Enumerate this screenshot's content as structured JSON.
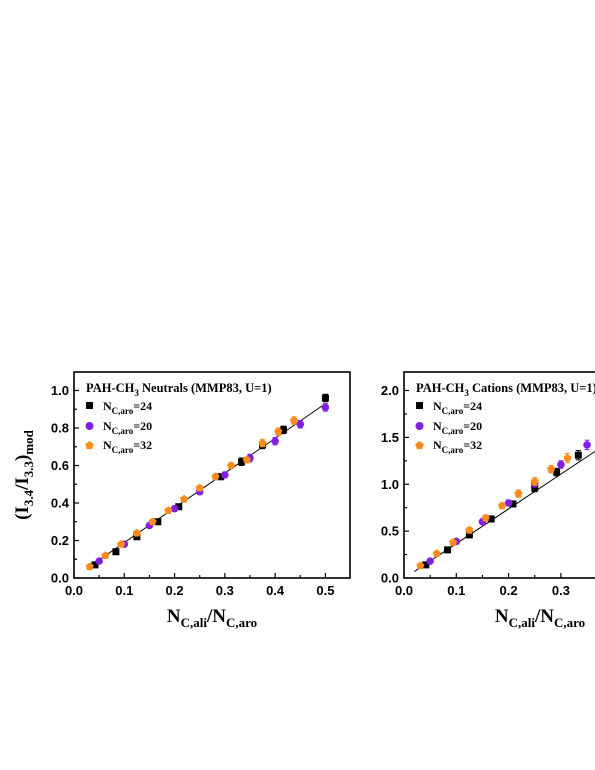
{
  "chart_data": [
    {
      "type": "scatter",
      "title": "PAH-CH",
      "title_sub": "3",
      "title_rest": " Neutrals (MMP83, U=1)",
      "xlabel": "N",
      "xlabel_sub1": "C,ali",
      "xlabel_mid": "/N",
      "xlabel_sub2": "C,aro",
      "ylabel": "(I",
      "ylabel_sub1": "3.4",
      "ylabel_mid": "/I",
      "ylabel_sub2": "3.3",
      "ylabel_end": ")",
      "ylabel_sub3": "mod",
      "xlim": [
        0.0,
        0.55
      ],
      "ylim": [
        0.0,
        1.1
      ],
      "xticks": [
        "0.0",
        "0.1",
        "0.2",
        "0.3",
        "0.4",
        "0.5"
      ],
      "xtick_values": [
        0.0,
        0.1,
        0.2,
        0.3,
        0.4,
        0.5
      ],
      "yticks": [
        "0.0",
        "0.2",
        "0.4",
        "0.6",
        "0.8",
        "1.0"
      ],
      "ytick_values": [
        0.0,
        0.2,
        0.4,
        0.6,
        0.8,
        1.0
      ],
      "fit_line": {
        "x": [
          0.025,
          0.5
        ],
        "y": [
          0.05,
          0.93
        ]
      },
      "series": [
        {
          "name": "N",
          "name_sub": "C,aro",
          "name_rest": "=24",
          "marker": "square",
          "color": "#000000",
          "x": [
            0.0417,
            0.0833,
            0.125,
            0.1667,
            0.2083,
            0.2917,
            0.3333,
            0.375,
            0.4167,
            0.5
          ],
          "y": [
            0.07,
            0.14,
            0.22,
            0.3,
            0.38,
            0.54,
            0.62,
            0.71,
            0.79,
            0.96
          ],
          "err": [
            0.01,
            0.01,
            0.015,
            0.01,
            0.01,
            0.015,
            0.02,
            0.02,
            0.02,
            0.02
          ]
        },
        {
          "name": "N",
          "name_sub": "C,aro",
          "name_rest": "=20",
          "marker": "circle",
          "color": "#7f1fe0",
          "x": [
            0.05,
            0.1,
            0.15,
            0.2,
            0.25,
            0.3,
            0.35,
            0.4,
            0.45,
            0.5
          ],
          "y": [
            0.09,
            0.18,
            0.28,
            0.37,
            0.46,
            0.55,
            0.64,
            0.73,
            0.82,
            0.91
          ],
          "err": [
            0.01,
            0.01,
            0.01,
            0.015,
            0.015,
            0.015,
            0.02,
            0.02,
            0.02,
            0.02
          ]
        },
        {
          "name": "N",
          "name_sub": "C,aro",
          "name_rest": "=32",
          "marker": "pentagon",
          "color": "#ff8c1a",
          "x": [
            0.03125,
            0.0625,
            0.09375,
            0.125,
            0.15625,
            0.1875,
            0.21875,
            0.25,
            0.28125,
            0.3125,
            0.34375,
            0.375,
            0.40625,
            0.4375
          ],
          "y": [
            0.06,
            0.12,
            0.18,
            0.24,
            0.3,
            0.36,
            0.42,
            0.48,
            0.54,
            0.6,
            0.63,
            0.72,
            0.78,
            0.84
          ],
          "err": [
            0.01,
            0.01,
            0.01,
            0.01,
            0.01,
            0.01,
            0.01,
            0.015,
            0.015,
            0.015,
            0.015,
            0.02,
            0.02,
            0.02
          ]
        }
      ]
    },
    {
      "type": "scatter",
      "title": "PAH-CH",
      "title_sub": "3",
      "title_rest": " Cations (MMP83, U=1)",
      "xlabel": "N",
      "xlabel_sub1": "C,ali",
      "xlabel_mid": "/N",
      "xlabel_sub2": "C,aro",
      "ylabel": "",
      "xlim": [
        0.0,
        0.55
      ],
      "ylim": [
        0.0,
        2.2
      ],
      "xticks": [
        "0.0",
        "0.1",
        "0.2",
        "0.3"
      ],
      "xtick_values": [
        0.0,
        0.1,
        0.2,
        0.3
      ],
      "yticks": [
        "0.0",
        "0.5",
        "1.0",
        "1.5",
        "2.0"
      ],
      "ytick_values": [
        0.0,
        0.5,
        1.0,
        1.5,
        2.0
      ],
      "fit_line": {
        "x": [
          0.02,
          0.5
        ],
        "y": [
          0.07,
          1.85
        ]
      },
      "series": [
        {
          "name": "N",
          "name_sub": "C,aro",
          "name_rest": "=24",
          "marker": "square",
          "color": "#000000",
          "x": [
            0.0417,
            0.0833,
            0.125,
            0.1667,
            0.2083,
            0.25,
            0.2917,
            0.3333
          ],
          "y": [
            0.14,
            0.3,
            0.46,
            0.63,
            0.79,
            0.96,
            1.13,
            1.31
          ],
          "err": [
            0.02,
            0.02,
            0.03,
            0.03,
            0.03,
            0.04,
            0.04,
            0.05
          ]
        },
        {
          "name": "N",
          "name_sub": "C,aro",
          "name_rest": "=20",
          "marker": "circle",
          "color": "#7f1fe0",
          "x": [
            0.05,
            0.1,
            0.15,
            0.2,
            0.25,
            0.3,
            0.35
          ],
          "y": [
            0.18,
            0.39,
            0.6,
            0.8,
            1.01,
            1.21,
            1.42
          ],
          "err": [
            0.02,
            0.02,
            0.03,
            0.03,
            0.04,
            0.04,
            0.05
          ]
        },
        {
          "name": "N",
          "name_sub": "C,aro",
          "name_rest": "=32",
          "marker": "pentagon",
          "color": "#ff8c1a",
          "x": [
            0.03125,
            0.0625,
            0.09375,
            0.125,
            0.15625,
            0.1875,
            0.21875,
            0.25,
            0.28125,
            0.3125
          ],
          "y": [
            0.13,
            0.26,
            0.38,
            0.51,
            0.64,
            0.77,
            0.9,
            1.03,
            1.16,
            1.28
          ],
          "err": [
            0.02,
            0.02,
            0.02,
            0.03,
            0.03,
            0.03,
            0.04,
            0.04,
            0.04,
            0.05
          ]
        }
      ]
    }
  ]
}
